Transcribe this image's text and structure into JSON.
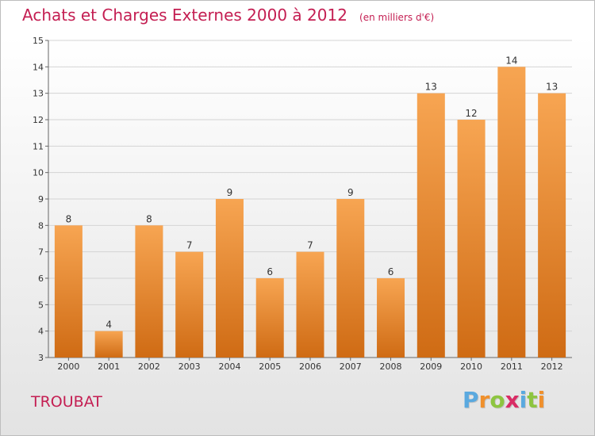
{
  "chart_data": {
    "type": "bar",
    "title": "Achats et Charges Externes 2000 à 2012",
    "subtitle": "(en milliers d'€)",
    "categories": [
      "2000",
      "2001",
      "2002",
      "2003",
      "2004",
      "2005",
      "2006",
      "2007",
      "2008",
      "2009",
      "2010",
      "2011",
      "2012"
    ],
    "values": [
      8,
      4,
      8,
      7,
      9,
      6,
      7,
      9,
      6,
      13,
      12,
      14,
      13
    ],
    "ylim": [
      3,
      15
    ],
    "yticks": [
      3,
      4,
      5,
      6,
      7,
      8,
      9,
      10,
      11,
      12,
      13,
      14,
      15
    ],
    "xlabel": "",
    "ylabel": "",
    "grid": true,
    "legend": "none",
    "bar_color_top": "#f7a552",
    "bar_color_bottom": "#cf6b14"
  },
  "footer": {
    "commune": "TROUBAT",
    "brand": "Proxiti"
  },
  "colors": {
    "title": "#c41e52",
    "brand_letters": [
      "#5aa9df",
      "#f0902c",
      "#8dc540",
      "#d92c65",
      "#5aa9df",
      "#8dc540",
      "#f0902c"
    ]
  }
}
